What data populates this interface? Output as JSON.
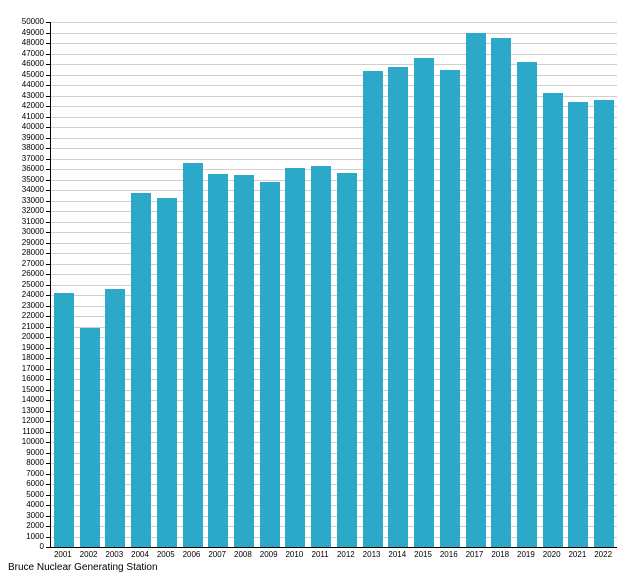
{
  "caption": "Bruce Nuclear Generating Station",
  "chart_data": {
    "type": "bar",
    "title": "",
    "xlabel": "",
    "ylabel": "",
    "categories": [
      "2001",
      "2002",
      "2003",
      "2004",
      "2005",
      "2006",
      "2007",
      "2008",
      "2009",
      "2010",
      "2011",
      "2012",
      "2013",
      "2014",
      "2015",
      "2016",
      "2017",
      "2018",
      "2019",
      "2020",
      "2021",
      "2022"
    ],
    "values": [
      24200,
      20900,
      24600,
      33700,
      33200,
      36600,
      35500,
      35400,
      34800,
      36100,
      36300,
      35600,
      45300,
      45700,
      46600,
      45400,
      49000,
      48500,
      46200,
      43200,
      42400,
      42600
    ],
    "ylim": [
      0,
      50000
    ],
    "ytick_step": 1000,
    "grid": true,
    "legend_position": "none",
    "bar_color": "#2CA8C9"
  }
}
